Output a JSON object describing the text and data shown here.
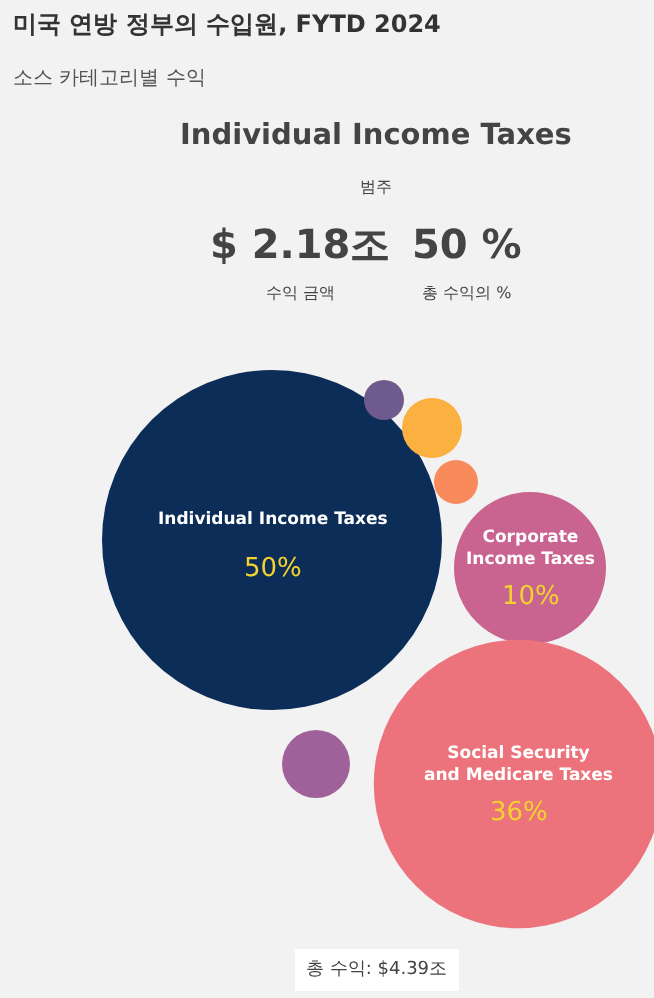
{
  "chart_data": {
    "type": "other",
    "title": "미국 연방 정부의 수입원, FYTD 2024",
    "subtitle": "소스 카테고리별 수익",
    "categories": [
      "Individual Income Taxes",
      "Corporate Income Taxes",
      "Social Security and Medicare Taxes",
      null,
      null,
      null,
      null
    ],
    "values": [
      50,
      10,
      36,
      null,
      null,
      null,
      null
    ],
    "value_labels": [
      "50%",
      "10%",
      "36%",
      null,
      null,
      null,
      null
    ],
    "colors": [
      "#0c2d57",
      "#c9638f",
      "#ec737c",
      "#6e5a8c",
      "#fbb040",
      "#f98a5c",
      "#a0609a"
    ],
    "annotations": [
      "Individual Income Taxes",
      "범주",
      "$ 2.18조",
      "50 %",
      "수익 금액",
      "총 수익의 %",
      "총 수익: $4.39조"
    ]
  }
}
